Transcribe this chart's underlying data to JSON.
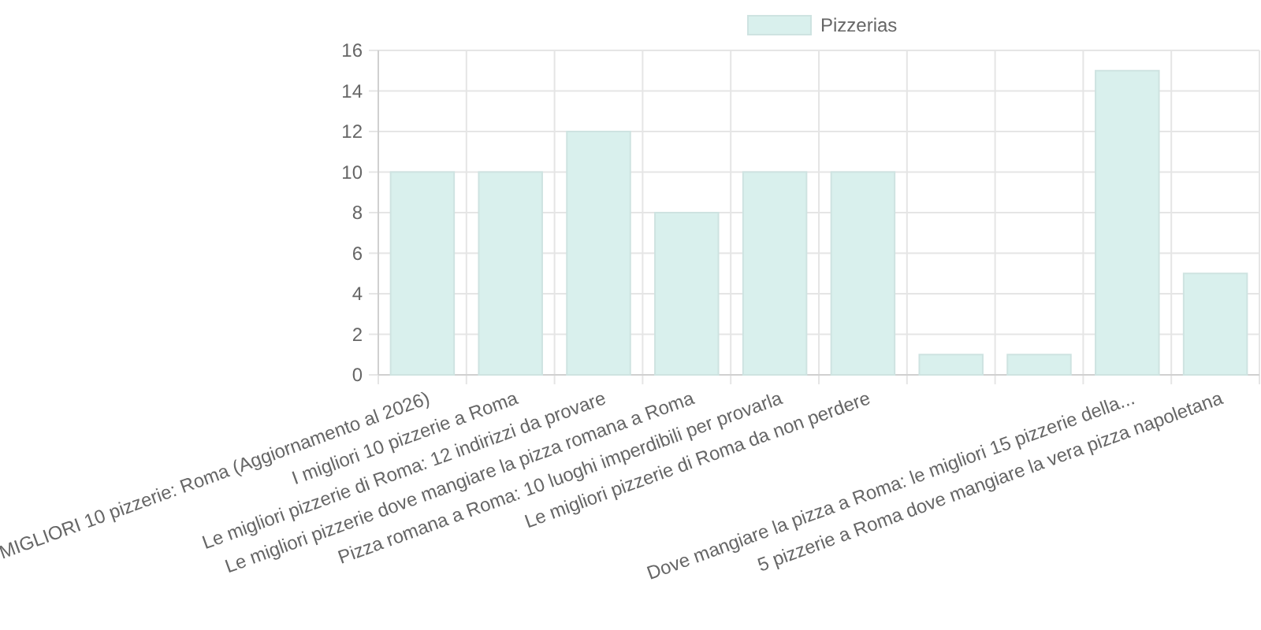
{
  "chart_data": {
    "type": "bar",
    "categories": [
      "MIGLIORI 10 pizzerie: Roma (Aggiornamento al 2026)",
      "I migliori 10 pizzerie a Roma",
      "Le migliori pizzerie di Roma: 12 indirizzi da provare",
      "Le migliori pizzerie dove mangiare la pizza romana a Roma",
      "Pizza romana a Roma: 10 luoghi imperdibili per provarla",
      "Le migliori pizzerie di Roma da non perdere",
      null,
      null,
      "Dove mangiare la pizza a Roma: le migliori 15 pizzerie della...",
      "5 pizzerie a Roma dove mangiare la vera pizza napoletana"
    ],
    "series": [
      {
        "name": "Pizzerias",
        "color": "#d9f0ed",
        "values": [
          10,
          10,
          12,
          8,
          10,
          10,
          1,
          1,
          15,
          5
        ]
      }
    ],
    "ylim": [
      0,
      16
    ],
    "yticks": [
      0,
      2,
      4,
      6,
      8,
      10,
      12,
      14,
      16
    ],
    "grid": true,
    "legend": "top"
  }
}
